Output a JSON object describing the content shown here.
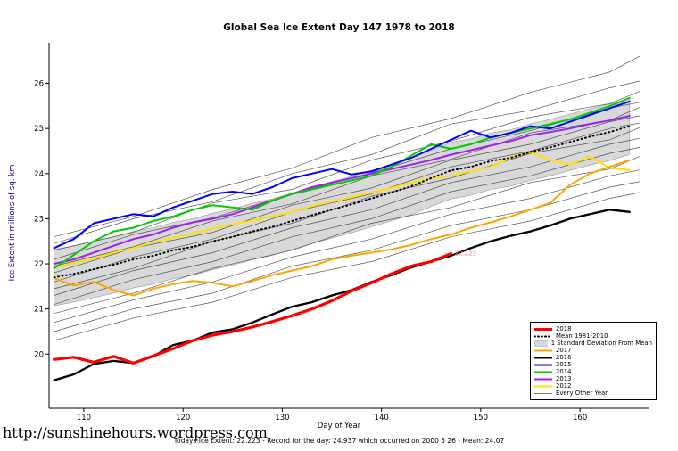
{
  "footer": {
    "site": "http://sunshinehours.wordpress.com",
    "summary": "Todays Ice Extent: 22.223  - Record for the day: 24.937 which occurred on 2000 5 26  - Mean: 24.07"
  },
  "chart_data": {
    "type": "line",
    "title": "Global Sea Ice Extent Day 147 1978 to 2018",
    "xlabel": "Day of Year",
    "ylabel": "Ice Extent in millions of sq. km",
    "xlim": [
      106.5,
      167
    ],
    "ylim": [
      18.8,
      26.9
    ],
    "xticks": [
      110,
      120,
      130,
      140,
      150,
      160
    ],
    "yticks": [
      20,
      21,
      22,
      23,
      24,
      25,
      26
    ],
    "vline": {
      "x": 147,
      "color": "#888888"
    },
    "annotation": {
      "x": 147,
      "y": 22.223,
      "text": "22.223",
      "color": "#f08080"
    },
    "x_main": [
      107,
      109,
      111,
      113,
      115,
      117,
      119,
      121,
      123,
      125,
      127,
      129,
      131,
      133,
      135,
      137,
      139,
      141,
      143,
      145,
      147,
      149,
      151,
      153,
      155,
      157,
      159,
      161,
      163,
      165
    ],
    "x_ctrl": [
      107,
      115,
      123,
      131,
      139,
      147,
      155,
      163,
      166
    ],
    "band": {
      "name": "1 Standard Deviation From Mean",
      "color": "#d8d8d8",
      "edge": "#9a9a9a",
      "upper": [
        22.32,
        22.4,
        22.5,
        22.6,
        22.72,
        22.8,
        22.92,
        23.0,
        23.12,
        23.22,
        23.34,
        23.44,
        23.57,
        23.7,
        23.82,
        23.94,
        24.07,
        24.2,
        24.34,
        24.52,
        24.69,
        24.77,
        24.9,
        24.97,
        25.1,
        25.2,
        25.32,
        25.44,
        25.54,
        25.67
      ],
      "lower": [
        21.07,
        21.15,
        21.25,
        21.35,
        21.47,
        21.55,
        21.67,
        21.75,
        21.87,
        21.97,
        22.09,
        22.19,
        22.32,
        22.45,
        22.57,
        22.69,
        22.82,
        22.95,
        23.09,
        23.27,
        23.44,
        23.52,
        23.65,
        23.72,
        23.85,
        23.95,
        24.07,
        24.19,
        24.29,
        24.42
      ]
    },
    "series": [
      {
        "name": "2012",
        "color": "#ffe000",
        "width": 2,
        "dash": "",
        "y": [
          21.92,
          22.02,
          22.12,
          22.25,
          22.35,
          22.48,
          22.58,
          22.68,
          22.78,
          22.88,
          22.95,
          23.05,
          23.15,
          23.28,
          23.38,
          23.48,
          23.58,
          23.68,
          23.8,
          23.9,
          23.95,
          24.05,
          24.15,
          24.35,
          24.48,
          24.3,
          24.2,
          24.38,
          24.12,
          24.08
        ]
      },
      {
        "name": "2013",
        "color": "#a020f0",
        "width": 2,
        "dash": "",
        "y": [
          22.0,
          22.1,
          22.25,
          22.4,
          22.55,
          22.65,
          22.8,
          22.92,
          23.0,
          23.1,
          23.25,
          23.4,
          23.55,
          23.7,
          23.8,
          23.9,
          24.0,
          24.1,
          24.2,
          24.3,
          24.42,
          24.52,
          24.62,
          24.72,
          24.85,
          24.92,
          25.0,
          25.1,
          25.18,
          25.28
        ]
      },
      {
        "name": "2014",
        "color": "#00cc00",
        "width": 2,
        "dash": "",
        "y": [
          21.9,
          22.2,
          22.5,
          22.72,
          22.8,
          22.95,
          23.05,
          23.2,
          23.3,
          23.25,
          23.2,
          23.4,
          23.55,
          23.65,
          23.75,
          23.85,
          23.95,
          24.15,
          24.4,
          24.65,
          24.55,
          24.65,
          24.8,
          24.9,
          25.0,
          25.1,
          25.2,
          25.35,
          25.5,
          25.68
        ]
      },
      {
        "name": "2015",
        "color": "#0000ff",
        "width": 2,
        "dash": "",
        "y": [
          22.35,
          22.55,
          22.9,
          23.0,
          23.1,
          23.05,
          23.25,
          23.4,
          23.55,
          23.6,
          23.55,
          23.7,
          23.9,
          24.0,
          24.1,
          23.98,
          24.05,
          24.2,
          24.35,
          24.55,
          24.75,
          24.95,
          24.8,
          24.9,
          25.05,
          25.0,
          25.15,
          25.3,
          25.45,
          25.6
        ]
      },
      {
        "name": "2016",
        "color": "#000000",
        "width": 2.3,
        "dash": "",
        "y": [
          19.42,
          19.55,
          19.78,
          19.85,
          19.8,
          19.95,
          20.2,
          20.3,
          20.48,
          20.55,
          20.7,
          20.88,
          21.05,
          21.15,
          21.3,
          21.42,
          21.6,
          21.75,
          21.92,
          22.05,
          22.18,
          22.35,
          22.5,
          22.62,
          22.72,
          22.85,
          23.0,
          23.1,
          23.2,
          23.15
        ]
      },
      {
        "name": "2017",
        "color": "#ffa500",
        "width": 2,
        "dash": "",
        "y": [
          21.68,
          21.52,
          21.6,
          21.42,
          21.3,
          21.45,
          21.55,
          21.62,
          21.58,
          21.5,
          21.62,
          21.75,
          21.85,
          21.95,
          22.1,
          22.18,
          22.25,
          22.32,
          22.42,
          22.55,
          22.65,
          22.8,
          22.92,
          23.05,
          23.2,
          23.35,
          23.75,
          24.0,
          24.15,
          24.3
        ]
      },
      {
        "name": "Mean 1981-2010",
        "color": "#000000",
        "width": 2,
        "dash": "1,3.5",
        "y": [
          21.7,
          21.78,
          21.88,
          21.98,
          22.1,
          22.18,
          22.3,
          22.38,
          22.5,
          22.6,
          22.72,
          22.82,
          22.95,
          23.08,
          23.2,
          23.32,
          23.45,
          23.58,
          23.72,
          23.9,
          24.07,
          24.15,
          24.28,
          24.35,
          24.48,
          24.58,
          24.7,
          24.82,
          24.92,
          25.05
        ]
      },
      {
        "name": "2018",
        "color": "#ff0000",
        "width": 3.2,
        "dash": "",
        "y": [
          19.88,
          19.93,
          19.82,
          19.95,
          19.8,
          19.96,
          20.12,
          20.3,
          20.42,
          20.5,
          20.6,
          20.72,
          20.85,
          21.0,
          21.18,
          21.4,
          21.58,
          21.78,
          21.95,
          22.05,
          22.223
        ]
      }
    ],
    "other_years": {
      "name": "Every Other Year",
      "color": "#3a3a3a",
      "width": 0.7,
      "lines": [
        [
          22.6,
          23.05,
          23.65,
          24.12,
          24.8,
          25.22,
          25.8,
          26.25,
          26.6
        ],
        [
          22.45,
          23.0,
          23.38,
          24.0,
          24.42,
          25.1,
          25.4,
          25.9,
          26.05
        ],
        [
          22.3,
          22.7,
          23.35,
          23.65,
          24.3,
          24.72,
          25.25,
          25.55,
          25.82
        ],
        [
          22.1,
          22.65,
          23.02,
          23.55,
          24.02,
          24.55,
          24.95,
          25.45,
          25.58
        ],
        [
          21.95,
          22.38,
          22.95,
          23.33,
          23.95,
          24.32,
          24.9,
          25.18,
          25.47
        ],
        [
          21.8,
          22.35,
          22.7,
          23.3,
          23.68,
          24.3,
          24.65,
          25.15,
          25.28
        ],
        [
          21.6,
          22.15,
          22.55,
          23.15,
          23.55,
          24.15,
          24.5,
          25.0,
          25.12
        ],
        [
          21.45,
          21.9,
          22.5,
          22.9,
          23.5,
          23.9,
          24.45,
          24.75,
          25.02
        ],
        [
          21.3,
          21.85,
          22.25,
          22.8,
          23.2,
          23.8,
          24.15,
          24.65,
          24.78
        ],
        [
          21.1,
          21.65,
          22.05,
          22.6,
          23.0,
          23.6,
          23.95,
          24.45,
          24.58
        ],
        [
          20.9,
          21.35,
          21.9,
          22.3,
          22.9,
          23.25,
          23.8,
          24.1,
          24.38
        ],
        [
          20.7,
          21.2,
          21.6,
          22.15,
          22.55,
          23.1,
          23.45,
          23.95,
          24.08
        ],
        [
          20.5,
          21.0,
          21.35,
          21.95,
          22.3,
          22.85,
          23.2,
          23.7,
          23.82
        ],
        [
          20.3,
          20.8,
          21.15,
          21.7,
          22.05,
          22.6,
          22.95,
          23.45,
          23.58
        ]
      ]
    }
  },
  "legend": {
    "items": [
      {
        "label": "2018",
        "color": "#ff0000",
        "width": 3,
        "dash": "",
        "box": false
      },
      {
        "label": "Mean 1981-2010",
        "color": "#000000",
        "width": 2,
        "dash": "1,3",
        "box": false
      },
      {
        "label": "1 Standard Deviation From Mean",
        "color": "#d8d8d8",
        "width": 0,
        "dash": "",
        "box": true
      },
      {
        "label": "2017",
        "color": "#ffa500",
        "width": 2,
        "dash": "",
        "box": false
      },
      {
        "label": "2016",
        "color": "#000000",
        "width": 2,
        "dash": "",
        "box": false
      },
      {
        "label": "2015",
        "color": "#0000ff",
        "width": 2,
        "dash": "",
        "box": false
      },
      {
        "label": "2014",
        "color": "#00cc00",
        "width": 2,
        "dash": "",
        "box": false
      },
      {
        "label": "2013",
        "color": "#a020f0",
        "width": 2,
        "dash": "",
        "box": false
      },
      {
        "label": "2012",
        "color": "#ffe000",
        "width": 2,
        "dash": "",
        "box": false
      },
      {
        "label": "Every Other Year",
        "color": "#555555",
        "width": 0.8,
        "dash": "",
        "box": false
      }
    ]
  }
}
